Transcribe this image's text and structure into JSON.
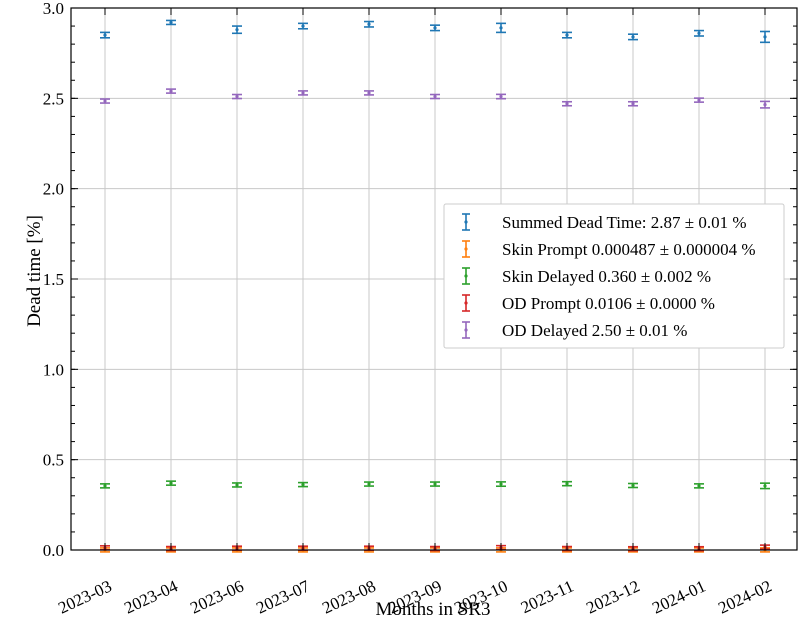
{
  "chart_data": {
    "type": "scatter",
    "title": "",
    "xlabel": "Months in SR3",
    "ylabel": "Dead time [%]",
    "categories": [
      "2023-03",
      "2023-04",
      "2023-06",
      "2023-07",
      "2023-08",
      "2023-09",
      "2023-10",
      "2023-11",
      "2023-12",
      "2024-01",
      "2024-02"
    ],
    "ylim": [
      0.0,
      3.0
    ],
    "yticks": [
      "0.0",
      "0.5",
      "1.0",
      "1.5",
      "2.0",
      "2.5",
      "3.0"
    ],
    "grid": true,
    "legend_position": "center-right",
    "series": [
      {
        "name": "Summed Dead Time: 2.87 ± 0.01 %",
        "color": "#1f77b4",
        "values": [
          2.85,
          2.92,
          2.88,
          2.9,
          2.91,
          2.89,
          2.89,
          2.85,
          2.84,
          2.86,
          2.84
        ],
        "errors": [
          0.015,
          0.01,
          0.02,
          0.015,
          0.015,
          0.015,
          0.025,
          0.015,
          0.015,
          0.015,
          0.03
        ]
      },
      {
        "name": "Skin Prompt 0.000487 ± 0.000004 %",
        "color": "#ff7f0e",
        "values": [
          0.0005,
          0.0005,
          0.0005,
          0.0005,
          0.0005,
          0.0005,
          0.0005,
          0.0005,
          0.0005,
          0.0005,
          0.0005
        ],
        "errors": [
          1e-05,
          1e-05,
          1e-05,
          1e-05,
          1e-05,
          1e-05,
          1e-05,
          1e-05,
          1e-05,
          1e-05,
          1e-05
        ]
      },
      {
        "name": "Skin Delayed 0.360 ± 0.002 %",
        "color": "#2ca02c",
        "values": [
          0.355,
          0.37,
          0.36,
          0.362,
          0.365,
          0.365,
          0.365,
          0.367,
          0.357,
          0.355,
          0.355
        ],
        "errors": [
          0.01,
          0.005,
          0.01,
          0.008,
          0.008,
          0.008,
          0.012,
          0.008,
          0.006,
          0.007,
          0.015
        ]
      },
      {
        "name": "OD Prompt 0.0106 ± 0.0000 %",
        "color": "#d62728",
        "values": [
          0.012,
          0.008,
          0.01,
          0.01,
          0.01,
          0.008,
          0.013,
          0.008,
          0.007,
          0.007,
          0.016
        ],
        "errors": [
          0.004,
          0.003,
          0.004,
          0.004,
          0.004,
          0.003,
          0.005,
          0.003,
          0.003,
          0.003,
          0.006
        ]
      },
      {
        "name": "OD Delayed 2.50 ± 0.01 %",
        "color": "#9467bd",
        "values": [
          2.485,
          2.54,
          2.51,
          2.53,
          2.53,
          2.51,
          2.51,
          2.47,
          2.47,
          2.49,
          2.465
        ],
        "errors": [
          0.01,
          0.006,
          0.01,
          0.01,
          0.01,
          0.008,
          0.012,
          0.008,
          0.008,
          0.008,
          0.018
        ]
      }
    ]
  }
}
